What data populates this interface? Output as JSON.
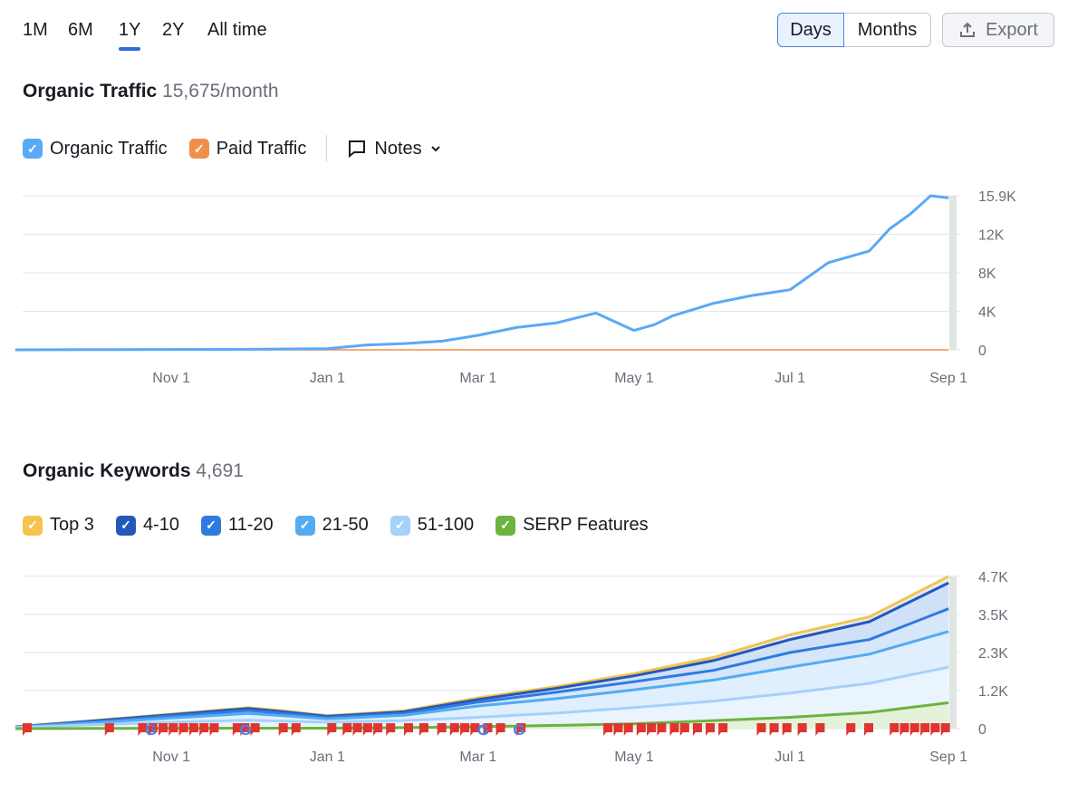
{
  "periods": [
    "1M",
    "6M",
    "1Y",
    "2Y",
    "All time"
  ],
  "active_period": "1Y",
  "granularity": {
    "days": "Days",
    "months": "Months",
    "selected": "Days"
  },
  "export_label": "Export",
  "traffic": {
    "title": "Organic Traffic",
    "value": "15,675/month",
    "legend": [
      {
        "label": "Organic Traffic",
        "color": "#5aa9f5"
      },
      {
        "label": "Paid Traffic",
        "color": "#f08f4b"
      }
    ],
    "notes_label": "Notes"
  },
  "keywords": {
    "title": "Organic Keywords",
    "value": "4,691",
    "legend": [
      {
        "label": "Top 3",
        "color": "#f5c44e"
      },
      {
        "label": "4-10",
        "color": "#2358b8"
      },
      {
        "label": "11-20",
        "color": "#2f7be0"
      },
      {
        "label": "21-50",
        "color": "#53abf2"
      },
      {
        "label": "51-100",
        "color": "#a5d1fa"
      },
      {
        "label": "SERP Features",
        "color": "#6cb33f"
      }
    ]
  },
  "chart_data": [
    {
      "type": "line",
      "title": "Organic Traffic",
      "x_labels": [
        "Nov 1",
        "Jan 1",
        "Mar 1",
        "May 1",
        "Jul 1",
        "Sep 1"
      ],
      "y_ticks": [
        "15.9K",
        "12K",
        "8K",
        "4K",
        "0"
      ],
      "ylim": [
        0,
        15900
      ],
      "x_days": [
        0,
        30,
        61,
        91,
        122,
        137,
        152,
        167,
        181,
        196,
        212,
        227,
        242,
        250,
        257,
        273,
        288,
        303,
        318,
        334,
        342,
        350,
        358,
        365
      ],
      "series": [
        {
          "name": "Organic Traffic",
          "values": [
            0,
            20,
            40,
            60,
            120,
            500,
            650,
            900,
            1500,
            2300,
            2800,
            3800,
            2000,
            2600,
            3500,
            4800,
            5600,
            6200,
            9000,
            10200,
            12500,
            14000,
            15900,
            15675
          ]
        },
        {
          "name": "Paid Traffic",
          "values": [
            0,
            0,
            0,
            0,
            0,
            0,
            0,
            0,
            0,
            0,
            0,
            0,
            0,
            0,
            0,
            0,
            0,
            0,
            0,
            0,
            0,
            0,
            0,
            0
          ]
        }
      ]
    },
    {
      "type": "area",
      "title": "Organic Keywords",
      "x_labels": [
        "Nov 1",
        "Jan 1",
        "Mar 1",
        "May 1",
        "Jul 1",
        "Sep 1"
      ],
      "y_ticks": [
        "4.7K",
        "3.5K",
        "2.3K",
        "1.2K",
        "0"
      ],
      "ylim": [
        0,
        4700
      ],
      "x_days": [
        0,
        30,
        61,
        91,
        105,
        122,
        152,
        181,
        212,
        242,
        273,
        303,
        334,
        365
      ],
      "series": [
        {
          "name": "Top 3",
          "values": [
            60,
            250,
            450,
            650,
            550,
            400,
            550,
            950,
            1300,
            1700,
            2200,
            2900,
            3450,
            4700
          ]
        },
        {
          "name": "4-10",
          "values": [
            55,
            235,
            430,
            620,
            520,
            380,
            520,
            900,
            1250,
            1630,
            2100,
            2750,
            3300,
            4500
          ]
        },
        {
          "name": "11-20",
          "values": [
            50,
            210,
            390,
            560,
            470,
            340,
            470,
            820,
            1130,
            1450,
            1800,
            2350,
            2750,
            3700
          ]
        },
        {
          "name": "21-50",
          "values": [
            45,
            180,
            330,
            470,
            400,
            300,
            410,
            700,
            930,
            1200,
            1500,
            1900,
            2300,
            3000
          ]
        },
        {
          "name": "51-100",
          "values": [
            35,
            120,
            200,
            260,
            230,
            200,
            250,
            350,
            480,
            650,
            850,
            1100,
            1400,
            1900
          ]
        },
        {
          "name": "SERP Features",
          "values": [
            0,
            5,
            10,
            15,
            15,
            15,
            30,
            60,
            100,
            150,
            250,
            350,
            500,
            800
          ]
        }
      ],
      "note_days": [
        0,
        35,
        48,
        52,
        56,
        60,
        64,
        68,
        72,
        76,
        85,
        88,
        92,
        103,
        108,
        122,
        128,
        132,
        136,
        140,
        145,
        152,
        158,
        165,
        170,
        174,
        178,
        183,
        188,
        196,
        230,
        234,
        238,
        243,
        247,
        251,
        256,
        260,
        265,
        270,
        275,
        290,
        295,
        300,
        306,
        313,
        325,
        332,
        342,
        346,
        350,
        354,
        358,
        362
      ],
      "google_update_days": [
        53,
        90,
        183,
        197
      ]
    }
  ]
}
